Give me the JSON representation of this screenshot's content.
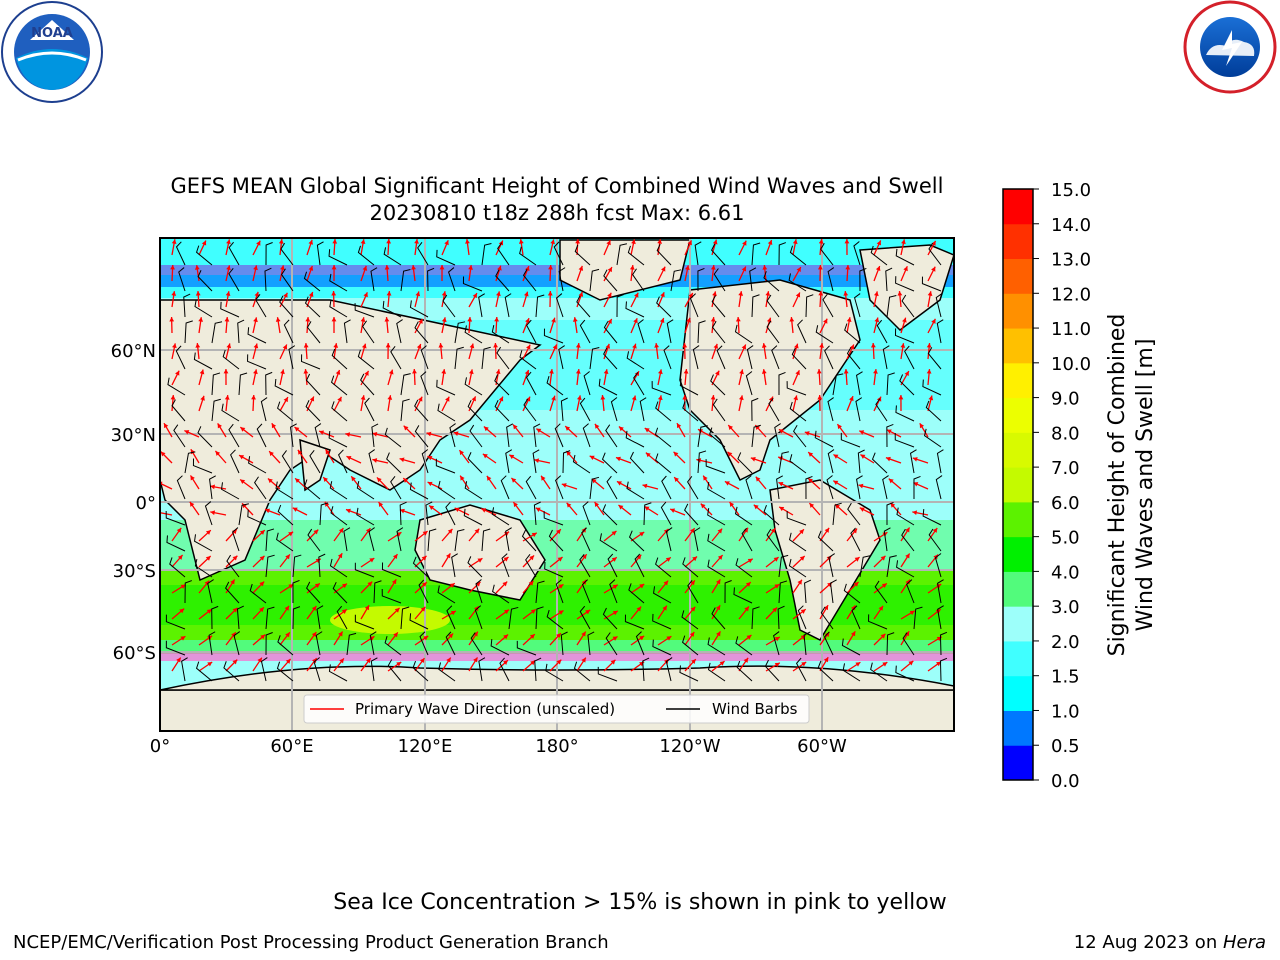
{
  "title_line1": "GEFS MEAN Global Significant Height of Combined Wind Waves and Swell",
  "title_line2": "20230810 t18z 288h fcst   Max: 6.61",
  "logos": {
    "left": "noara-logo",
    "right": "nws-logo"
  },
  "map": {
    "lon_ticks": [
      "0°",
      "60°E",
      "120°E",
      "180°",
      "120°W",
      "60°W"
    ],
    "lat_ticks": [
      "60°N",
      "30°N",
      "0°",
      "30°S",
      "60°S"
    ],
    "legend": {
      "wave_dir": "Primary Wave Direction (unscaled)",
      "wind_barbs": "Wind Barbs",
      "wave_color": "#ff0000",
      "barb_color": "#000000"
    },
    "land_color": "#efecdc",
    "grid_color": "#b4b4b4"
  },
  "colorbar": {
    "label_line1": "Significant Height of Combined",
    "label_line2": "Wind Waves and Swell [m]",
    "ticks": [
      "0.0",
      "0.5",
      "1.0",
      "1.5",
      "2.0",
      "3.0",
      "4.0",
      "5.0",
      "6.0",
      "7.0",
      "8.0",
      "9.0",
      "10.0",
      "11.0",
      "12.0",
      "13.0",
      "14.0",
      "15.0"
    ],
    "colors": [
      "#0000ff",
      "#0078ff",
      "#00ffff",
      "#40ffff",
      "#9dfffa",
      "#52fb7c",
      "#00f000",
      "#5cf200",
      "#c4fa00",
      "#d8fa00",
      "#ecff00",
      "#fff000",
      "#ffc000",
      "#ff9000",
      "#ff6000",
      "#ff3000",
      "#ff0000"
    ]
  },
  "footer": {
    "note": "Sea Ice Concentration > 15% is shown in pink to yellow",
    "left": "NCEP/EMC/Verification Post Processing Product Generation Branch",
    "right_date": "12 Aug 2023 on ",
    "right_host": "Hera"
  }
}
